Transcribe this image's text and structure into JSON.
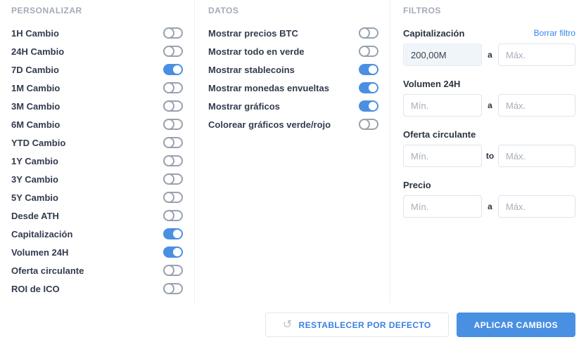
{
  "colors": {
    "accent_blue": "#4a90e2",
    "link_blue": "#3583f0",
    "toggle_off_gray": "#99a2ae",
    "label_dark": "#323b4e",
    "section_header_gray": "#a3abb8",
    "filled_input_bg": "#f0f5fa"
  },
  "personalizar": {
    "title": "PERSONALIZAR",
    "items": [
      {
        "label": "1H Cambio",
        "on": false
      },
      {
        "label": "24H Cambio",
        "on": false
      },
      {
        "label": "7D Cambio",
        "on": true
      },
      {
        "label": "1M Cambio",
        "on": false
      },
      {
        "label": "3M Cambio",
        "on": false
      },
      {
        "label": "6M Cambio",
        "on": false
      },
      {
        "label": "YTD Cambio",
        "on": false
      },
      {
        "label": "1Y Cambio",
        "on": false
      },
      {
        "label": "3Y Cambio",
        "on": false
      },
      {
        "label": "5Y Cambio",
        "on": false
      },
      {
        "label": "Desde ATH",
        "on": false
      },
      {
        "label": "Capitalización",
        "on": true
      },
      {
        "label": "Volumen 24H",
        "on": true
      },
      {
        "label": "Oferta circulante",
        "on": false
      },
      {
        "label": "ROI de ICO",
        "on": false
      }
    ]
  },
  "datos": {
    "title": "DATOS",
    "items": [
      {
        "label": "Mostrar precios BTC",
        "on": false
      },
      {
        "label": "Mostrar todo en verde",
        "on": false
      },
      {
        "label": "Mostrar stablecoins",
        "on": true
      },
      {
        "label": "Mostrar monedas envueltas",
        "on": true
      },
      {
        "label": "Mostrar gráficos",
        "on": true
      },
      {
        "label": "Colorear gráficos verde/rojo",
        "on": false
      }
    ]
  },
  "filtros": {
    "title": "FILTROS",
    "groups": [
      {
        "label": "Capitalización",
        "clear_link": "Borrar filtro",
        "min_value": "200,00M",
        "min_placeholder": "Mín.",
        "separator": "a",
        "max_value": "",
        "max_placeholder": "Máx."
      },
      {
        "label": "Volumen 24H",
        "clear_link": "",
        "min_value": "",
        "min_placeholder": "Mín.",
        "separator": "a",
        "max_value": "",
        "max_placeholder": "Máx."
      },
      {
        "label": "Oferta circulante",
        "clear_link": "",
        "min_value": "",
        "min_placeholder": "Mín.",
        "separator": "to",
        "max_value": "",
        "max_placeholder": "Máx."
      },
      {
        "label": "Precio",
        "clear_link": "",
        "min_value": "",
        "min_placeholder": "Mín.",
        "separator": "a",
        "max_value": "",
        "max_placeholder": "Máx."
      }
    ]
  },
  "footer": {
    "reset_icon": "↺",
    "reset_label": "RESTABLECER POR DEFECTO",
    "apply_label": "APLICAR CAMBIOS"
  }
}
